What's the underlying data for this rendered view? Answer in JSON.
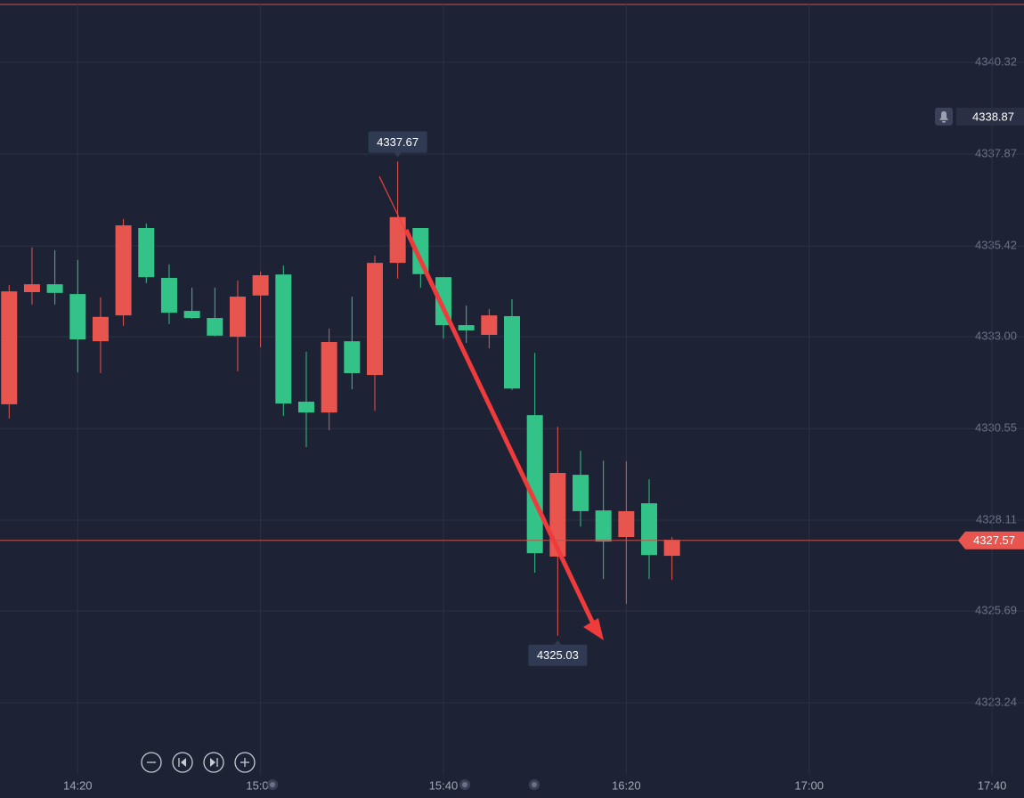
{
  "chart_data": {
    "type": "candlestick",
    "x": [
      "14:05",
      "14:10",
      "14:15",
      "14:20",
      "14:25",
      "14:30",
      "14:35",
      "14:40",
      "14:45",
      "14:50",
      "14:55",
      "15:00",
      "15:05",
      "15:10",
      "15:15",
      "15:20",
      "15:25",
      "15:30",
      "15:35",
      "15:40",
      "15:45",
      "15:50",
      "15:55",
      "16:00",
      "16:05",
      "16:10",
      "16:15",
      "16:20",
      "16:25",
      "16:30"
    ],
    "open": [
      4334.21,
      4334.4,
      4334.17,
      4332.93,
      4333.53,
      4335.97,
      4334.59,
      4333.64,
      4333.5,
      4333.03,
      4334.07,
      4334.64,
      4331.22,
      4330.98,
      4332.86,
      4332.03,
      4334.97,
      4336.19,
      4334.67,
      4333.31,
      4333.17,
      4333.57,
      4331.62,
      4327.23,
      4329.37,
      4328.35,
      4327.54,
      4328.35,
      4327.18,
      4327.59
    ],
    "high": [
      4334.38,
      4335.38,
      4335.31,
      4335.05,
      4334.05,
      4336.14,
      4336.02,
      4334.93,
      4334.31,
      4334.31,
      4334.5,
      4334.74,
      4334.9,
      4332.6,
      4333.22,
      4334.07,
      4335.16,
      4337.67,
      4335.9,
      4334.59,
      4333.83,
      4333.74,
      4334.0,
      4332.57,
      4330.6,
      4329.96,
      4329.7,
      4329.68,
      4329.2,
      4327.66
    ],
    "low": [
      4330.82,
      4333.86,
      4333.86,
      4332.05,
      4332.03,
      4333.29,
      4334.43,
      4333.34,
      4333.48,
      4333.01,
      4332.08,
      4332.72,
      4330.89,
      4330.06,
      4330.51,
      4331.6,
      4331.03,
      4334.55,
      4334.31,
      4332.95,
      4332.84,
      4332.69,
      4331.58,
      4326.71,
      4325.03,
      4327.94,
      4326.54,
      4325.88,
      4326.54,
      4326.52
    ],
    "close": [
      4331.2,
      4334.19,
      4334.4,
      4334.14,
      4332.88,
      4333.57,
      4335.9,
      4334.57,
      4333.69,
      4333.5,
      4333.0,
      4334.1,
      4334.66,
      4331.27,
      4330.98,
      4332.88,
      4331.98,
      4334.97,
      4335.9,
      4334.59,
      4333.31,
      4333.05,
      4333.55,
      4330.91,
      4327.14,
      4329.32,
      4328.37,
      4327.66,
      4328.56,
      4327.16
    ],
    "up_color": "#33c287",
    "down_color": "#e8554e",
    "xlim": [
      "14:03",
      "17:47"
    ],
    "xticks": [
      "14:20",
      "15:00",
      "15:40",
      "16:20",
      "17:00",
      "17:40"
    ],
    "ylim": [
      4321.32,
      4341.86
    ],
    "yticks": [
      4323.24,
      4325.69,
      4328.11,
      4330.55,
      {
        "value": 4333,
        "label": "4333.00"
      },
      4335.42,
      4337.87,
      4340.32
    ],
    "grid": true,
    "high_label": 4337.67,
    "low_label": 4325.03,
    "alert_price": 4338.87,
    "current_price": 4327.57
  }
}
